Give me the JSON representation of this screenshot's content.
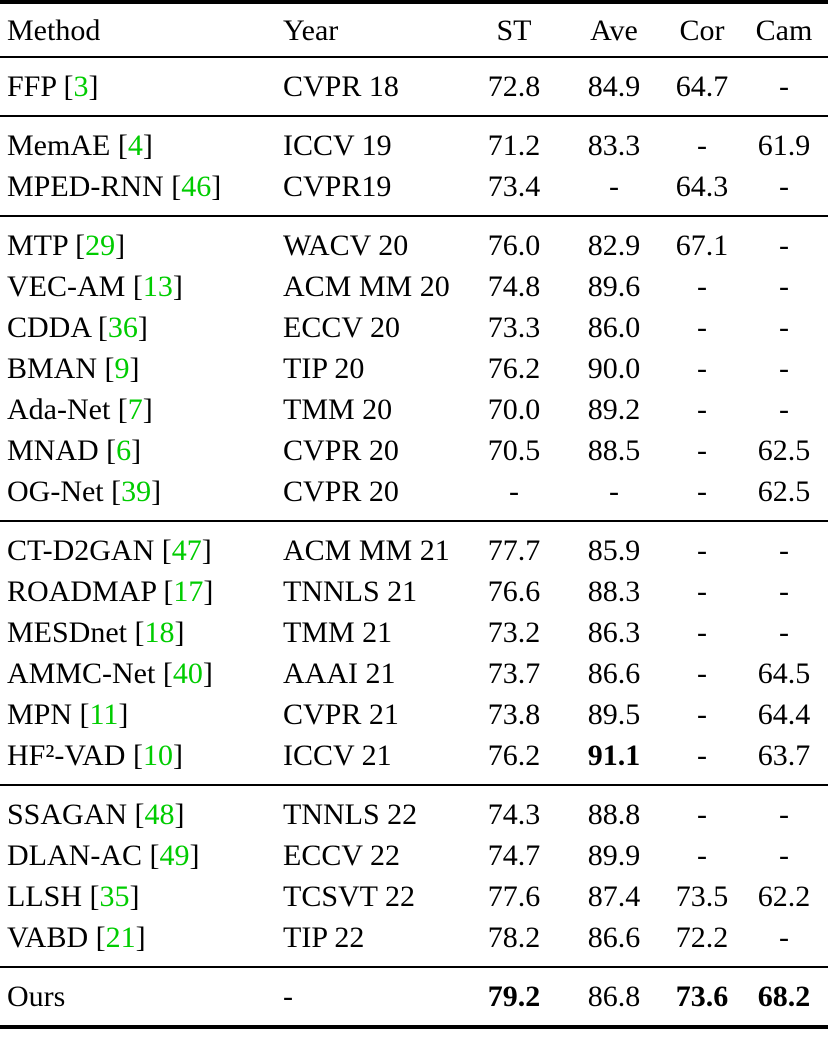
{
  "colors": {
    "citation": "#00CC00",
    "text": "#000000",
    "background": "#FFFFFF"
  },
  "table": {
    "columns": [
      "Method",
      "Year",
      "ST",
      "Ave",
      "Cor",
      "Cam"
    ],
    "groups": [
      {
        "rows": [
          {
            "method": "FFP",
            "ref": "3",
            "year": "CVPR 18",
            "values": {
              "st": "72.8",
              "ave": "84.9",
              "cor": "64.7",
              "cam": "-"
            },
            "bold": []
          }
        ]
      },
      {
        "rows": [
          {
            "method": "MemAE",
            "ref": "4",
            "year": "ICCV 19",
            "values": {
              "st": "71.2",
              "ave": "83.3",
              "cor": "-",
              "cam": "61.9"
            },
            "bold": []
          },
          {
            "method": "MPED-RNN",
            "ref": "46",
            "year": "CVPR19",
            "values": {
              "st": "73.4",
              "ave": "-",
              "cor": "64.3",
              "cam": "-"
            },
            "bold": []
          }
        ]
      },
      {
        "rows": [
          {
            "method": "MTP",
            "ref": "29",
            "year": "WACV 20",
            "values": {
              "st": "76.0",
              "ave": "82.9",
              "cor": "67.1",
              "cam": "-"
            },
            "bold": []
          },
          {
            "method": "VEC-AM",
            "ref": "13",
            "year": "ACM MM 20",
            "values": {
              "st": "74.8",
              "ave": "89.6",
              "cor": "-",
              "cam": "-"
            },
            "bold": []
          },
          {
            "method": "CDDA",
            "ref": "36",
            "year": "ECCV 20",
            "values": {
              "st": "73.3",
              "ave": "86.0",
              "cor": "-",
              "cam": "-"
            },
            "bold": []
          },
          {
            "method": "BMAN",
            "ref": "9",
            "year": "TIP 20",
            "values": {
              "st": "76.2",
              "ave": "90.0",
              "cor": "-",
              "cam": "-"
            },
            "bold": []
          },
          {
            "method": "Ada-Net",
            "ref": "7",
            "year": "TMM 20",
            "values": {
              "st": "70.0",
              "ave": "89.2",
              "cor": "-",
              "cam": "-"
            },
            "bold": []
          },
          {
            "method": "MNAD",
            "ref": "6",
            "year": "CVPR 20",
            "values": {
              "st": "70.5",
              "ave": "88.5",
              "cor": "-",
              "cam": "62.5"
            },
            "bold": []
          },
          {
            "method": "OG-Net",
            "ref": "39",
            "year": "CVPR 20",
            "values": {
              "st": "-",
              "ave": "-",
              "cor": "-",
              "cam": "62.5"
            },
            "bold": []
          }
        ]
      },
      {
        "rows": [
          {
            "method": "CT-D2GAN",
            "ref": "47",
            "year": "ACM MM 21",
            "values": {
              "st": "77.7",
              "ave": "85.9",
              "cor": "-",
              "cam": "-"
            },
            "bold": []
          },
          {
            "method": "ROADMAP",
            "ref": "17",
            "year": "TNNLS 21",
            "values": {
              "st": "76.6",
              "ave": "88.3",
              "cor": "-",
              "cam": "-"
            },
            "bold": []
          },
          {
            "method": "MESDnet",
            "ref": "18",
            "year": "TMM 21",
            "values": {
              "st": "73.2",
              "ave": "86.3",
              "cor": "-",
              "cam": "-"
            },
            "bold": []
          },
          {
            "method": "AMMC-Net",
            "ref": "40",
            "year": "AAAI 21",
            "values": {
              "st": "73.7",
              "ave": "86.6",
              "cor": "-",
              "cam": "64.5"
            },
            "bold": []
          },
          {
            "method": "MPN",
            "ref": "11",
            "year": "CVPR 21",
            "values": {
              "st": "73.8",
              "ave": "89.5",
              "cor": "-",
              "cam": "64.4"
            },
            "bold": []
          },
          {
            "method": "HF²-VAD",
            "ref": "10",
            "year": "ICCV 21",
            "values": {
              "st": "76.2",
              "ave": "91.1",
              "cor": "-",
              "cam": "63.7"
            },
            "bold": [
              "ave"
            ]
          }
        ]
      },
      {
        "rows": [
          {
            "method": "SSAGAN",
            "ref": "48",
            "year": "TNNLS 22",
            "values": {
              "st": "74.3",
              "ave": "88.8",
              "cor": "-",
              "cam": "-"
            },
            "bold": []
          },
          {
            "method": "DLAN-AC",
            "ref": "49",
            "year": "ECCV 22",
            "values": {
              "st": "74.7",
              "ave": "89.9",
              "cor": "-",
              "cam": "-"
            },
            "bold": []
          },
          {
            "method": "LLSH",
            "ref": "35",
            "year": "TCSVT 22",
            "values": {
              "st": "77.6",
              "ave": "87.4",
              "cor": "73.5",
              "cam": "62.2"
            },
            "bold": []
          },
          {
            "method": "VABD",
            "ref": "21",
            "year": "TIP 22",
            "values": {
              "st": "78.2",
              "ave": "86.6",
              "cor": "72.2",
              "cam": "-"
            },
            "bold": []
          }
        ]
      },
      {
        "rows": [
          {
            "method": "Ours",
            "ref": null,
            "year": "-",
            "values": {
              "st": "79.2",
              "ave": "86.8",
              "cor": "73.6",
              "cam": "68.2"
            },
            "bold": [
              "st",
              "cor",
              "cam"
            ]
          }
        ]
      }
    ]
  }
}
